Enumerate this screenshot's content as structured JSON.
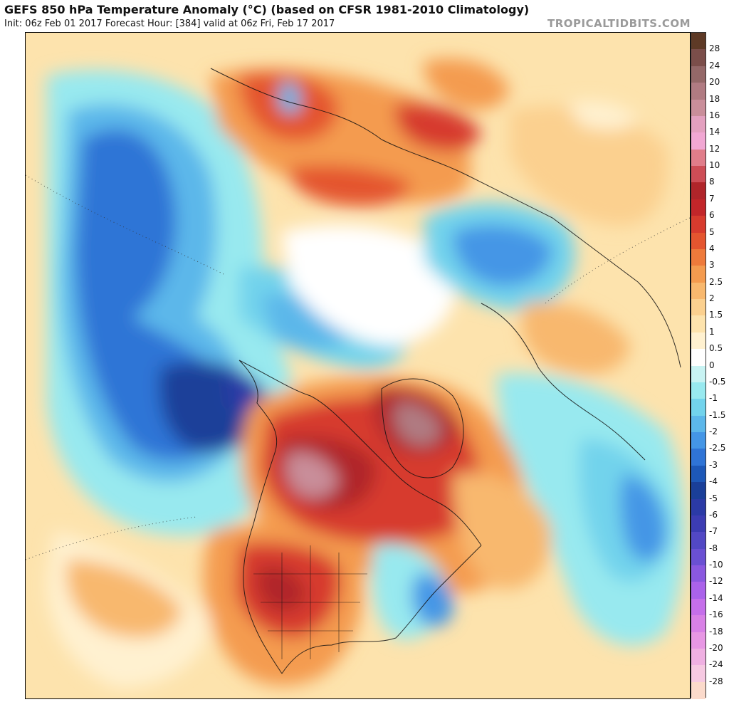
{
  "header": {
    "title": "GEFS 850 hPa Temperature Anomaly (°C) (based on CFSR 1981-2010 Climatology)",
    "subtitle": "Init: 06z Feb 01 2017   Forecast Hour: [384]   valid at 06z Fri, Feb 17 2017",
    "brand": "TROPICALTIDBITS.COM"
  },
  "map": {
    "projection": "polar stereographic, Northern Hemisphere",
    "variable": "850 hPa temperature anomaly",
    "units": "°C",
    "features": [
      {
        "name": "north-pacific-cold-anomaly",
        "sign": "negative"
      },
      {
        "name": "gulf-of-alaska-cold-core",
        "sign": "negative"
      },
      {
        "name": "canada-greenland-warm-anomaly",
        "sign": "positive"
      },
      {
        "name": "western-us-warm-anomaly",
        "sign": "positive"
      },
      {
        "name": "north-atlantic-cold-anomaly",
        "sign": "negative"
      },
      {
        "name": "siberia-warm-anomaly",
        "sign": "positive"
      },
      {
        "name": "central-asia-cold-anomaly",
        "sign": "negative"
      }
    ]
  },
  "colorbar": {
    "labels": [
      "28",
      "24",
      "20",
      "18",
      "16",
      "14",
      "12",
      "10",
      "8",
      "7",
      "6",
      "5",
      "4",
      "3",
      "2.5",
      "2",
      "1.5",
      "1",
      "0.5",
      "0",
      "-0.5",
      "-1",
      "-1.5",
      "-2",
      "-2.5",
      "-3",
      "-4",
      "-5",
      "-6",
      "-7",
      "-8",
      "-10",
      "-12",
      "-14",
      "-16",
      "-18",
      "-20",
      "-24",
      "-28"
    ],
    "colors": [
      "#5e3a26",
      "#7b4e4a",
      "#946868",
      "#b07b82",
      "#c98e9a",
      "#e3a0bf",
      "#f1a7d3",
      "#e07d8a",
      "#cd4d56",
      "#b0252a",
      "#c2262a",
      "#d73b2e",
      "#e4552f",
      "#ee7a3b",
      "#f49b4f",
      "#f8b86e",
      "#fbd08f",
      "#fde3ad",
      "#fff1d0",
      "#ffffff",
      "#c8f3f3",
      "#98e9ef",
      "#72d3ec",
      "#5cb7ea",
      "#4496e6",
      "#2f74d6",
      "#1d58b8",
      "#1a3f99",
      "#2b3aa6",
      "#3c3cb3",
      "#5248c4",
      "#6a50d3",
      "#8a58e0",
      "#aa62ea",
      "#c56fea",
      "#d881e6",
      "#e797e4",
      "#efb0e2",
      "#f6c9e2",
      "#fbdacb"
    ]
  }
}
